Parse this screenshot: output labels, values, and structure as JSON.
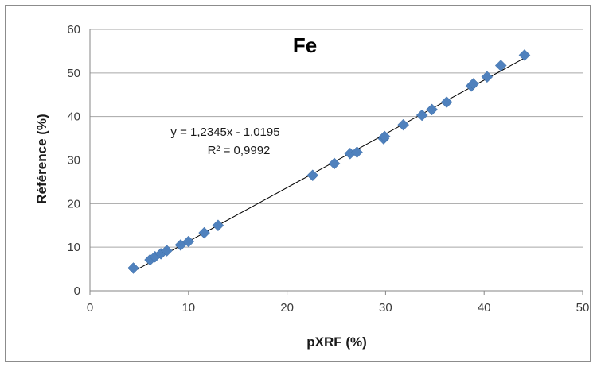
{
  "chart_data": {
    "type": "scatter",
    "title": "Fe",
    "xlabel": "pXRF (%)",
    "ylabel": "Référence (%)",
    "xlim": [
      0,
      50
    ],
    "ylim": [
      0,
      60
    ],
    "xticks": [
      "0",
      "10",
      "20",
      "30",
      "40",
      "50"
    ],
    "yticks": [
      "0",
      "10",
      "20",
      "30",
      "40",
      "50",
      "60"
    ],
    "grid": "horizontal",
    "marker_color": "#4f81bd",
    "trendline": {
      "equation": "y = 1,2345x - 1,0195",
      "r_squared": "R² = 0,9992",
      "slope": 1.2345,
      "intercept": -1.0195,
      "x_range": [
        4.4,
        44
      ]
    },
    "x": [
      4.4,
      6.1,
      6.6,
      7.2,
      7.8,
      9.2,
      10,
      11.6,
      13,
      22.6,
      24.8,
      26.4,
      27.1,
      29.8,
      29.9,
      31.8,
      33.7,
      34.7,
      36.2,
      38.7,
      38.9,
      40.3,
      41.7,
      44.1
    ],
    "y": [
      5.2,
      7.1,
      7.8,
      8.5,
      9.2,
      10.5,
      11.3,
      13.3,
      15.0,
      26.5,
      29.2,
      31.5,
      31.8,
      34.9,
      35.4,
      38.1,
      40.3,
      41.6,
      43.3,
      47.0,
      47.5,
      49.1,
      51.7,
      54.1
    ]
  }
}
